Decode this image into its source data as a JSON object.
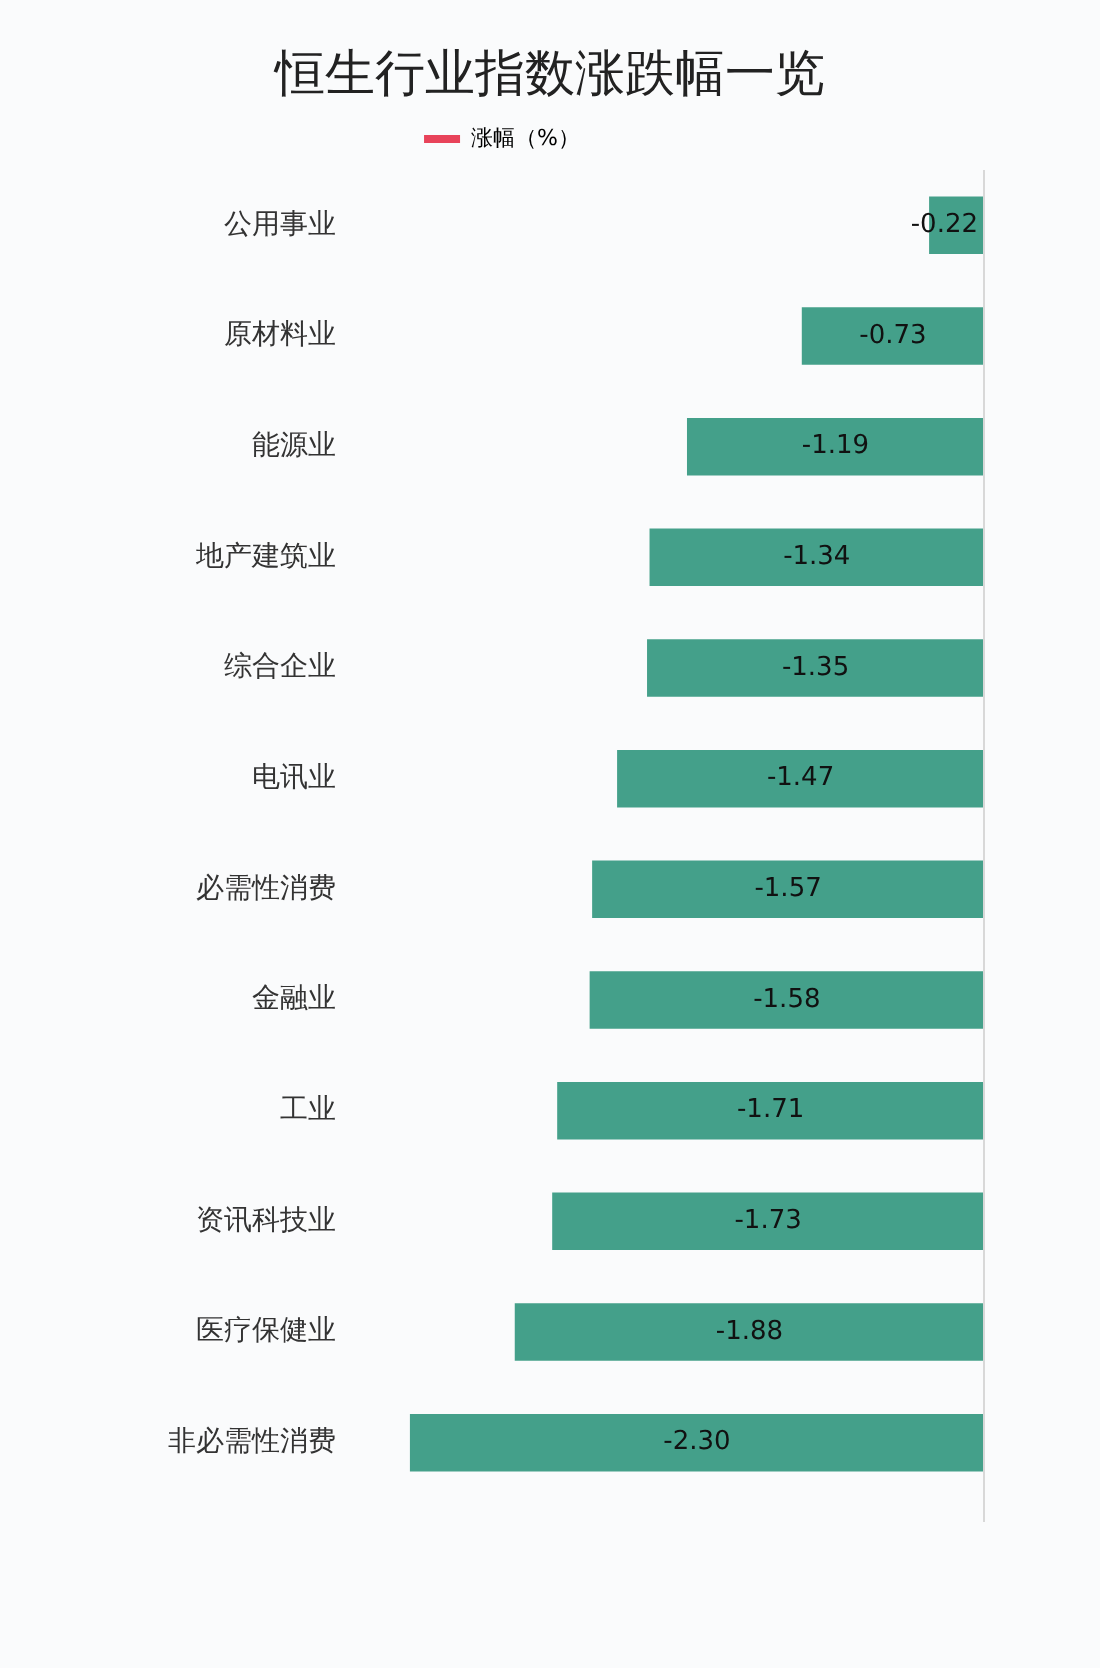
{
  "chart_data": {
    "type": "bar",
    "orientation": "horizontal",
    "title": "恒生行业指数涨跌幅一览",
    "categories": [
      "公用事业",
      "原材料业",
      "能源业",
      "地产建筑业",
      "综合企业",
      "电讯业",
      "必需性消费",
      "金融业",
      "工业",
      "资讯科技业",
      "医疗保健业",
      "非必需性消费"
    ],
    "series": [
      {
        "name": "涨幅（%）",
        "color": "#e8435a",
        "colors": [
          "#44a08a",
          "#44a08a",
          "#44a08a",
          "#44a08a",
          "#44a08a",
          "#44a08a",
          "#44a08a",
          "#44a08a",
          "#44a08a",
          "#44a08a",
          "#44a08a",
          "#44a08a"
        ],
        "values": [
          -0.22,
          -0.73,
          -1.19,
          -1.34,
          -1.35,
          -1.47,
          -1.57,
          -1.58,
          -1.71,
          -1.73,
          -1.88,
          -2.3
        ],
        "value_labels": [
          "-0.22",
          "-0.73",
          "-1.19",
          "-1.34",
          "-1.35",
          "-1.47",
          "-1.57",
          "-1.58",
          "-1.71",
          "-1.73",
          "-1.88",
          "-2.30"
        ]
      }
    ],
    "legend": "top",
    "grid": false,
    "tick_labels": "y"
  }
}
